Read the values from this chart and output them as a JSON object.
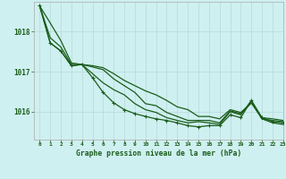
{
  "title": "Graphe pression niveau de la mer (hPa)",
  "bg_color": "#cff0f0",
  "grid_color": "#b8d8d8",
  "line_color": "#1a5c1a",
  "xlim": [
    -0.5,
    23
  ],
  "ylim": [
    1015.3,
    1018.75
  ],
  "yticks": [
    1016,
    1017,
    1018
  ],
  "xticks": [
    0,
    1,
    2,
    3,
    4,
    5,
    6,
    7,
    8,
    9,
    10,
    11,
    12,
    13,
    14,
    15,
    16,
    17,
    18,
    19,
    20,
    21,
    22,
    23
  ],
  "s1": [
    1018.65,
    1018.22,
    1017.78,
    1017.22,
    1017.18,
    1016.95,
    1016.72,
    1016.55,
    1016.42,
    1016.2,
    1016.05,
    1015.98,
    1015.85,
    1015.78,
    1015.72,
    1015.75,
    1015.72,
    1015.68,
    1016.0,
    1015.92,
    1016.28,
    1015.82,
    1015.72,
    1015.68
  ],
  "s2": [
    1018.65,
    1017.85,
    1017.62,
    1017.18,
    1017.18,
    1017.12,
    1017.05,
    1016.82,
    1016.65,
    1016.48,
    1016.2,
    1016.15,
    1015.98,
    1015.88,
    1015.78,
    1015.78,
    1015.78,
    1015.72,
    1016.02,
    1015.95,
    1016.22,
    1015.82,
    1015.78,
    1015.75
  ],
  "s3": [
    1018.65,
    1017.72,
    1017.52,
    1017.15,
    1017.18,
    1017.15,
    1017.1,
    1016.95,
    1016.78,
    1016.65,
    1016.52,
    1016.42,
    1016.28,
    1016.12,
    1016.05,
    1015.88,
    1015.88,
    1015.82,
    1016.05,
    1015.98,
    1016.22,
    1015.85,
    1015.82,
    1015.78
  ],
  "s4_markers": [
    1018.65,
    1017.72,
    1017.52,
    1017.15,
    1017.18,
    1016.85,
    1016.48,
    1016.22,
    1016.05,
    1015.95,
    1015.88,
    1015.82,
    1015.78,
    1015.72,
    1015.65,
    1015.62,
    1015.65,
    1015.65,
    1015.92,
    1015.85,
    1016.28,
    1015.85,
    1015.75,
    1015.72
  ]
}
